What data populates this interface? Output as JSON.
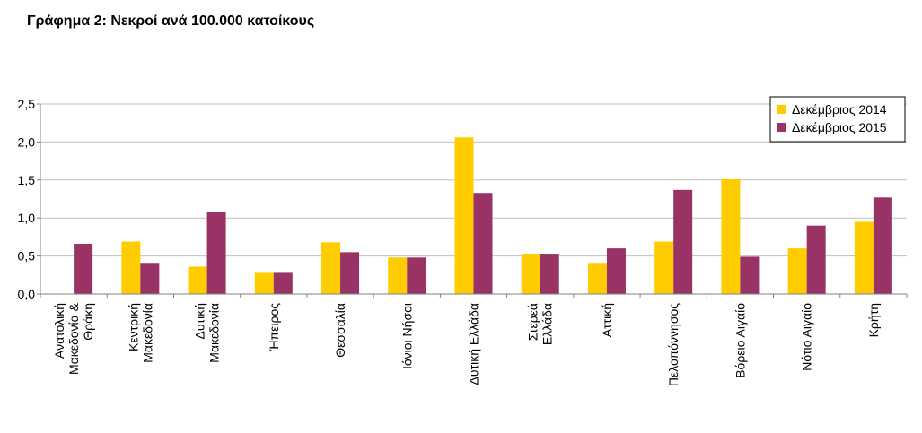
{
  "title": "Γράφημα 2: Νεκροί ανά 100.000 κατοίκους",
  "colors": {
    "series_2014": "#FFCC00",
    "series_2015": "#993366",
    "grid": "#BFBFBF",
    "axis": "#808080"
  },
  "chart_data": {
    "type": "bar",
    "title": "Γράφημα 2: Νεκροί ανά 100.000 κατοίκους",
    "xlabel": "",
    "ylabel": "",
    "ylim": [
      0,
      2.5
    ],
    "yticks": [
      "0,0",
      "0,5",
      "1,0",
      "1,5",
      "2,0",
      "2,5"
    ],
    "grid": true,
    "legend_position": "top-right",
    "categories": [
      [
        "Ανατολική",
        "Μακεδονία &",
        "Θράκη"
      ],
      [
        "Κεντρική",
        "Μακεδονία"
      ],
      [
        "Δυτική",
        "Μακεδονία"
      ],
      [
        "Ήπειρος"
      ],
      [
        "Θεσσαλία"
      ],
      [
        "Ιόνιοι Νήσοι"
      ],
      [
        "Δυτική Ελλάδα"
      ],
      [
        "Στερεά",
        "Ελλάδα"
      ],
      [
        "Αττική"
      ],
      [
        "Πελοπόννησος"
      ],
      [
        "Βόρειο Αιγαίο"
      ],
      [
        "Νότιο Αιγαίο"
      ],
      [
        "Κρήτη"
      ]
    ],
    "series": [
      {
        "name": "Δεκέμβριος 2014",
        "values": [
          0,
          0.69,
          0.36,
          0.29,
          0.68,
          0.48,
          2.06,
          0.53,
          0.41,
          0.69,
          1.51,
          0.6,
          0.95
        ]
      },
      {
        "name": "Δεκέμβριος 2015",
        "values": [
          0.66,
          0.41,
          1.08,
          0.29,
          0.55,
          0.48,
          1.33,
          0.53,
          0.6,
          1.37,
          0.49,
          0.9,
          1.27
        ]
      }
    ]
  }
}
